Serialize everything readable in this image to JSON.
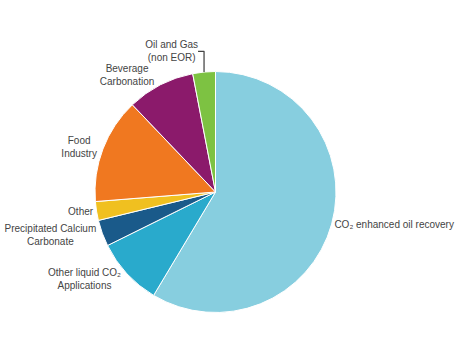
{
  "chart_data": {
    "type": "pie",
    "categories": [
      "CO₂ enhanced oil recovery",
      "Other liquid CO₂\nApplications",
      "Precipitated Calcium\nCarbonate",
      "Other",
      "Food\nIndustry",
      "Beverage\nCarbonation",
      "Oil and Gas\n(non EOR)"
    ],
    "values": [
      58,
      9,
      3.5,
      2.5,
      14,
      9,
      3
    ],
    "colors": [
      "#87CEDF",
      "#29AACC",
      "#1A5A8A",
      "#F0C020",
      "#F07820",
      "#8B1A6B",
      "#7DC242"
    ]
  }
}
